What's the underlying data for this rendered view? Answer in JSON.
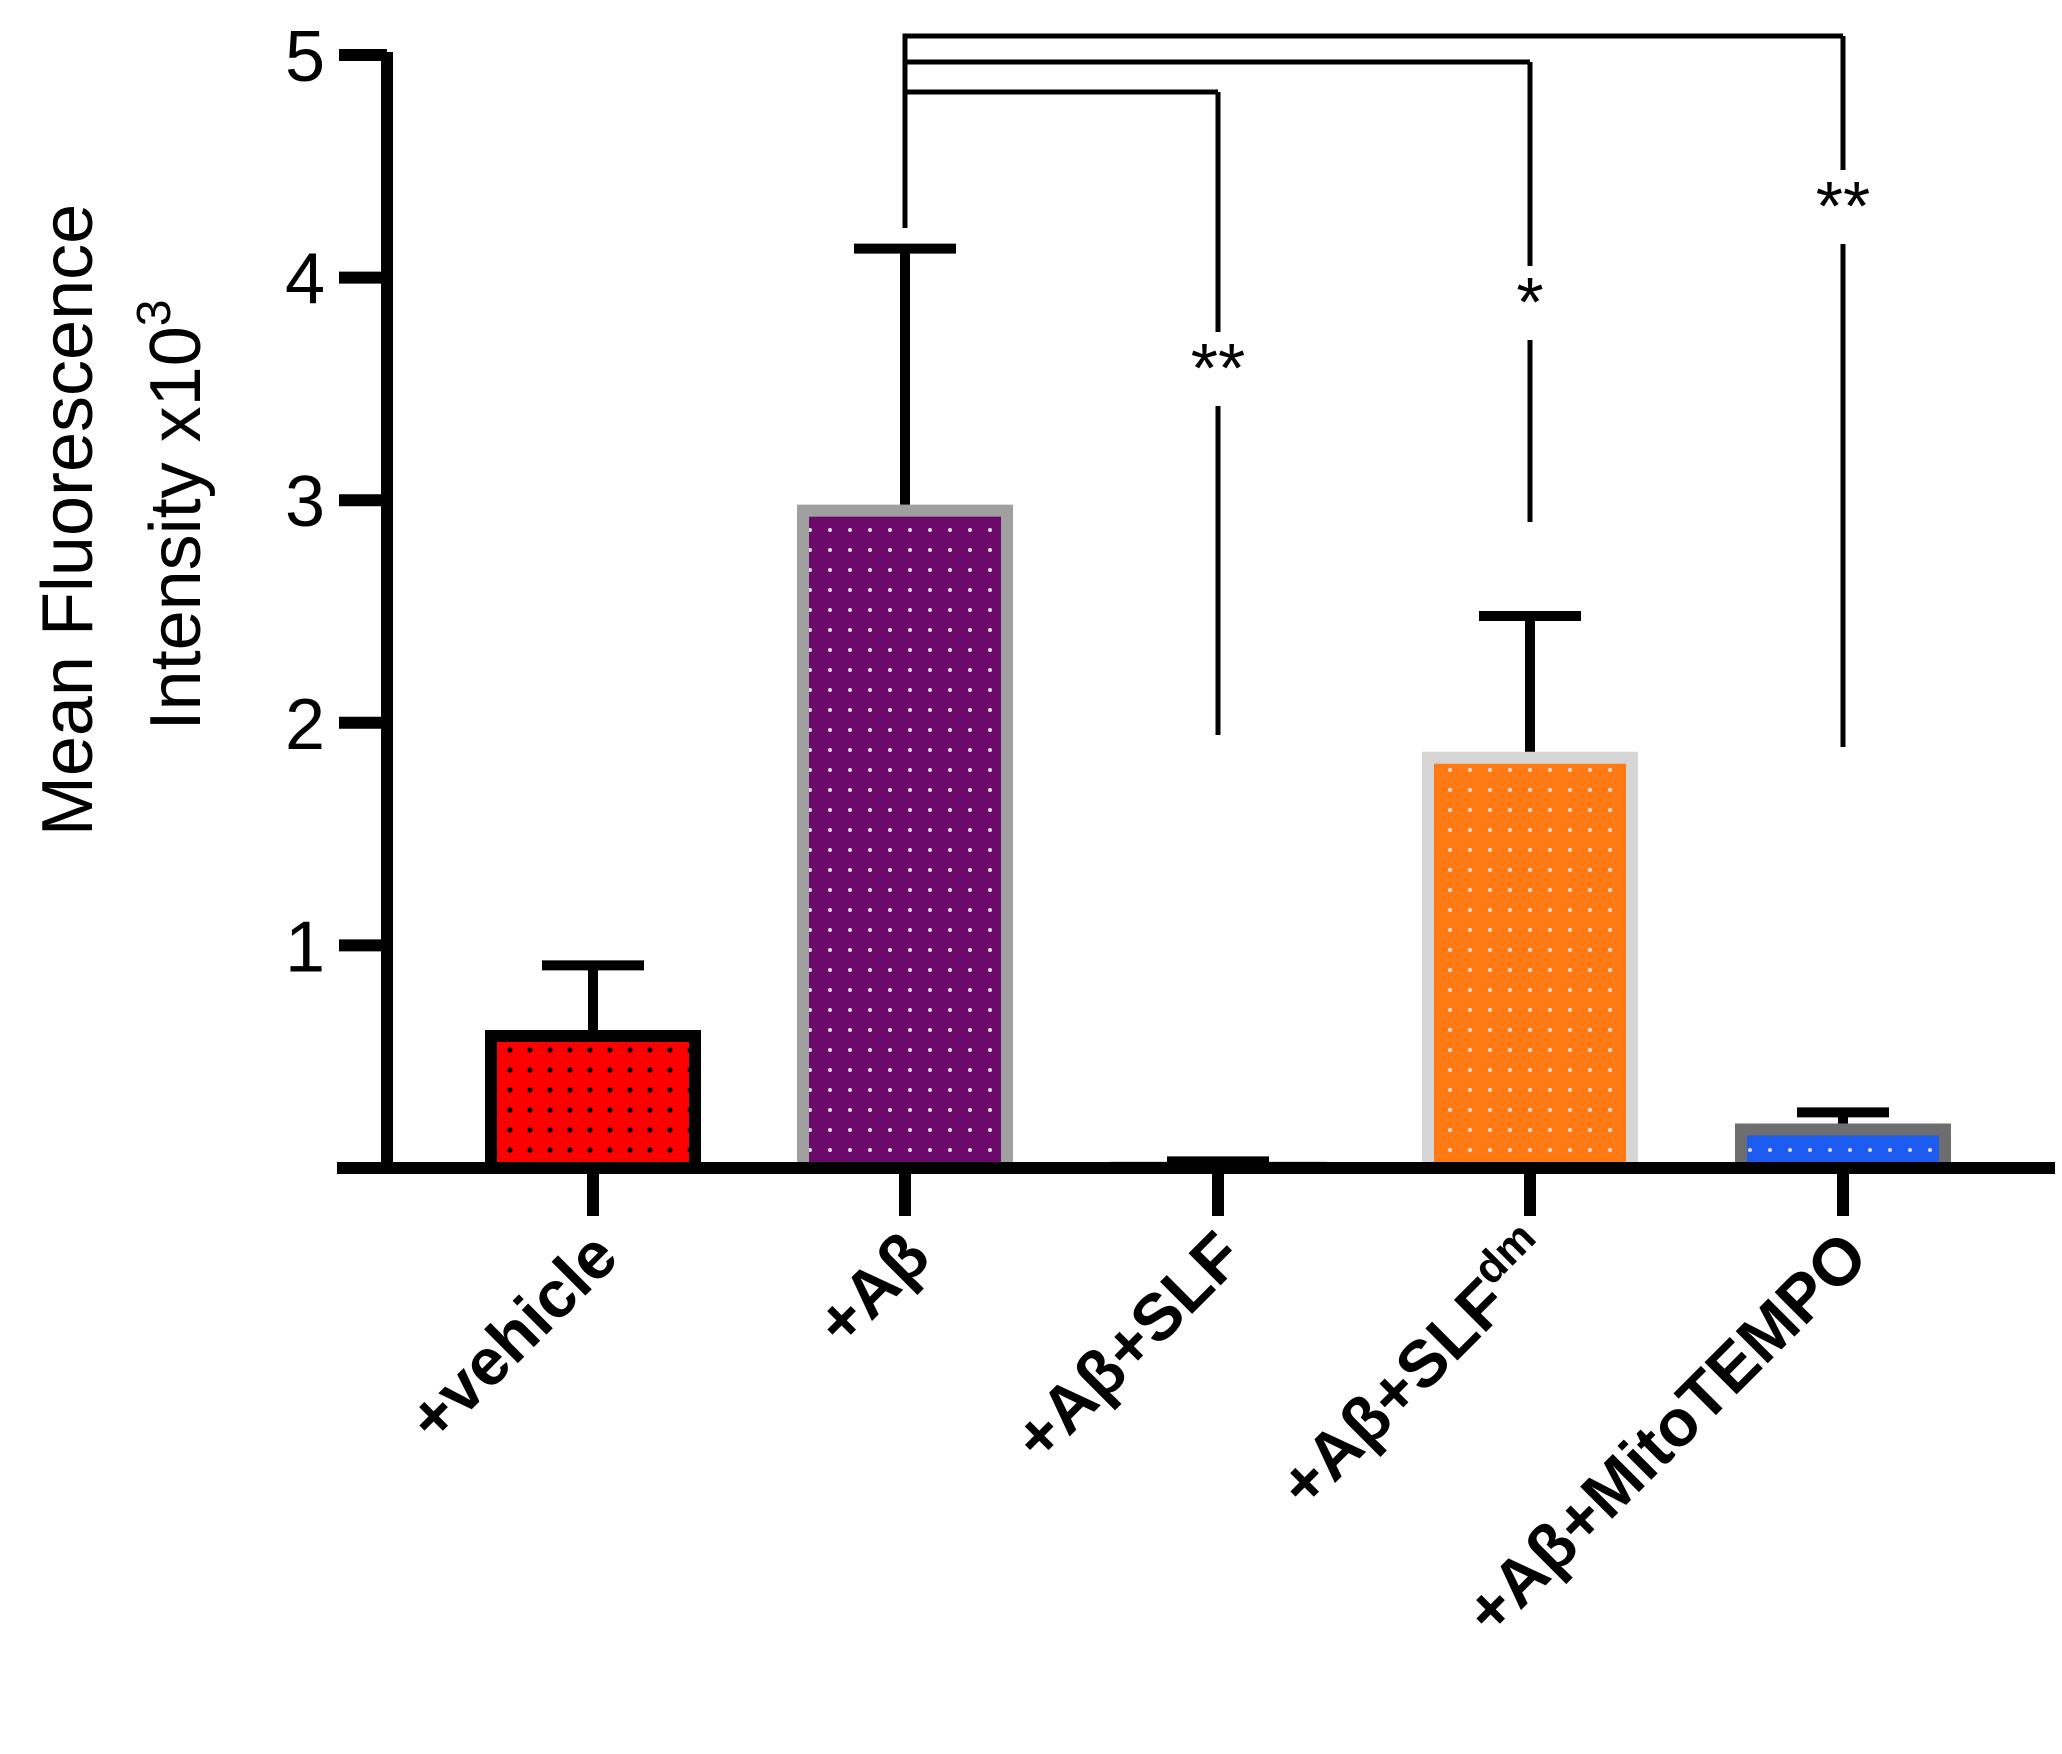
{
  "chart_data": {
    "type": "bar",
    "title": "",
    "xlabel": "",
    "ylabel_line1": "Mean Fluorescence",
    "ylabel_line2": "Intensity x10",
    "ylabel_exponent": "3",
    "ylim": [
      0,
      5
    ],
    "yticks": [
      "1",
      "2",
      "3",
      "4",
      "5"
    ],
    "categories": [
      {
        "prefix": "+vehicle",
        "sup": ""
      },
      {
        "prefix": "+Aβ",
        "sup": ""
      },
      {
        "prefix": "+Aβ+SLF",
        "sup": ""
      },
      {
        "prefix": "+Aβ+SLF",
        "sup": "dm"
      },
      {
        "prefix": "+Aβ+MitoTEMPO",
        "sup": ""
      }
    ],
    "values": [
      0.62,
      2.98,
      0.03,
      1.87,
      0.2
    ],
    "errors": [
      0.29,
      1.15,
      0.0,
      0.61,
      0.05
    ],
    "bar_fill_colors": [
      "#ff0000",
      "#6b0a6b",
      "#b8b8b8",
      "#ff7a12",
      "#1c5cf0"
    ],
    "bar_border_colors": [
      "#000000",
      "#a0a0a0",
      "#c8c8c8",
      "#d6d6d6",
      "#6e6e6e"
    ],
    "comparisons": [
      {
        "from": 1,
        "to": 2,
        "label": "**"
      },
      {
        "from": 1,
        "to": 3,
        "label": "*"
      },
      {
        "from": 1,
        "to": 4,
        "label": "**"
      }
    ]
  }
}
